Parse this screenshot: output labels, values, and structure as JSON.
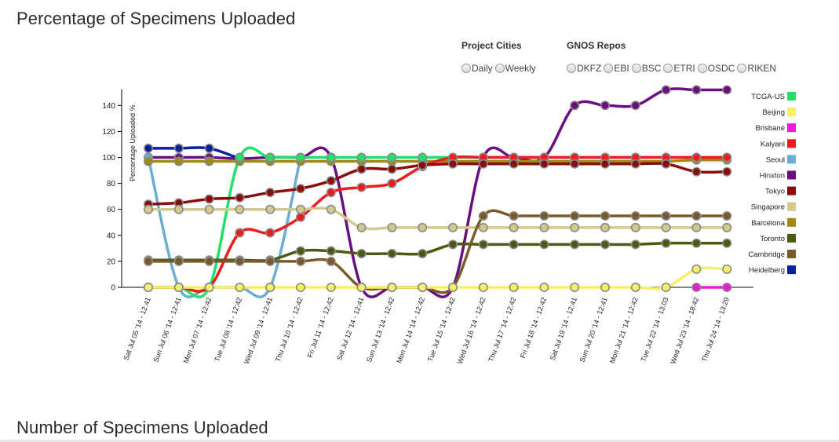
{
  "page": {
    "title": "Percentage of Specimens Uploaded",
    "bottom_title": "Number of Specimens Uploaded"
  },
  "controls": {
    "project_cities": {
      "heading": "Project Cities",
      "options": [
        "Daily",
        "Weekly"
      ]
    },
    "gnos_repos": {
      "heading": "GNOS Repos",
      "options": [
        "DKFZ",
        "EBI",
        "BSC",
        "ETRI",
        "OSDC",
        "RIKEN"
      ]
    }
  },
  "chart_data": {
    "type": "line",
    "ylabel": "Percentage Uploaded %",
    "ylim": [
      0,
      150
    ],
    "yticks": [
      0,
      20,
      40,
      60,
      80,
      100,
      120,
      140
    ],
    "grid": false,
    "legend_position": "right",
    "categories": [
      "Sat Jul 05 '14 - 12:41",
      "Sun Jul 06 '14 - 12:41",
      "Mon Jul 07 '14 - 12:42",
      "Tue Jul 08 '14 - 12:42",
      "Wed Jul 09 '14 - 12:41",
      "Thu Jul 10 '14 - 12:42",
      "Fri Jul 11 '14 - 12:42",
      "Sat Jul 12 '14 - 12:41",
      "Sun Jul 13 '14 - 12:42",
      "Mon Jul 14 '14 - 12:42",
      "Tue Jul 15 '14 - 12:42",
      "Wed Jul 16 '14 - 12:42",
      "Thu Jul 17 '14 - 12:42",
      "Fri Jul 18 '14 - 12:42",
      "Sat Jul 19 '14 - 12:41",
      "Sun Jul 20 '14 - 12:41",
      "Mon Jul 21 '14 - 12:42",
      "Tue Jul 22 '14 - 13:03",
      "Wed Jul 23 '14 - 18:42",
      "Thu Jul 24 '14 - 13:29"
    ],
    "series": [
      {
        "name": "Heidelberg",
        "color": "#0a1f9e",
        "values": [
          107,
          107,
          107,
          99,
          null,
          null,
          null,
          null,
          null,
          null,
          null,
          null,
          null,
          null,
          null,
          null,
          null,
          null,
          null,
          null
        ]
      },
      {
        "name": "Hinxton",
        "color": "#6a0f80",
        "values": [
          100,
          100,
          100,
          99,
          100,
          100,
          100,
          0,
          0,
          0,
          0,
          100,
          100,
          100,
          140,
          140,
          140,
          152,
          152,
          152
        ]
      },
      {
        "name": "Seoul",
        "color": "#6aaed0",
        "values": [
          100,
          0,
          0,
          0,
          0,
          100,
          null,
          null,
          null,
          null,
          null,
          null,
          null,
          null,
          null,
          null,
          null,
          null,
          null,
          null
        ]
      },
      {
        "name": "Barcelona",
        "color": "#a08a10",
        "values": [
          97,
          97,
          97,
          97,
          97,
          97,
          97,
          97,
          97,
          97,
          97,
          97,
          97,
          97,
          97,
          97,
          97,
          97,
          98,
          98
        ]
      },
      {
        "name": "TCGA-US",
        "color": "#22e06a",
        "values": [
          0,
          0,
          0,
          100,
          100,
          100,
          100,
          100,
          100,
          100,
          100,
          100,
          100,
          100,
          100,
          100,
          100,
          100,
          100,
          100
        ]
      },
      {
        "name": "Kalyani",
        "color": "#ee1c1c",
        "values": [
          0,
          0,
          0,
          42,
          42,
          54,
          73,
          77,
          80,
          93,
          100,
          100,
          100,
          100,
          100,
          100,
          100,
          100,
          100,
          100
        ]
      },
      {
        "name": "Tokyo",
        "color": "#8b0c0c",
        "values": [
          64,
          65,
          68,
          69,
          73,
          76,
          82,
          91,
          91,
          94,
          95,
          95,
          95,
          95,
          95,
          95,
          95,
          95,
          89,
          89
        ]
      },
      {
        "name": "Singapore",
        "color": "#d4c88a",
        "values": [
          60,
          60,
          60,
          60,
          60,
          60,
          60,
          46,
          46,
          46,
          46,
          46,
          46,
          46,
          46,
          46,
          46,
          46,
          46,
          46
        ]
      },
      {
        "name": "Toronto",
        "color": "#4a5a10",
        "values": [
          21,
          21,
          21,
          21,
          21,
          28,
          28,
          26,
          26,
          26,
          33,
          33,
          33,
          33,
          33,
          33,
          33,
          34,
          34,
          34
        ]
      },
      {
        "name": "Cambridge",
        "color": "#7a5a2a",
        "values": [
          20,
          20,
          20,
          20,
          20,
          20,
          20,
          0,
          0,
          0,
          0,
          55,
          55,
          55,
          55,
          55,
          55,
          55,
          55,
          55
        ]
      },
      {
        "name": "Beijing",
        "color": "#f5ef6a",
        "values": [
          0,
          0,
          0,
          0,
          0,
          0,
          0,
          0,
          0,
          0,
          0,
          0,
          0,
          0,
          0,
          0,
          0,
          0,
          14,
          14
        ]
      },
      {
        "name": "Brisbane",
        "color": "#f018d8",
        "values": [
          null,
          null,
          null,
          null,
          null,
          null,
          null,
          null,
          null,
          null,
          null,
          null,
          null,
          null,
          null,
          null,
          null,
          null,
          0,
          0
        ]
      }
    ],
    "legend_order": [
      "TCGA-US",
      "Beijing",
      "Brisbane",
      "Kalyani",
      "Seoul",
      "Hinxton",
      "Tokyo",
      "Singapore",
      "Barcelona",
      "Toronto",
      "Cambridge",
      "Heidelberg"
    ]
  }
}
